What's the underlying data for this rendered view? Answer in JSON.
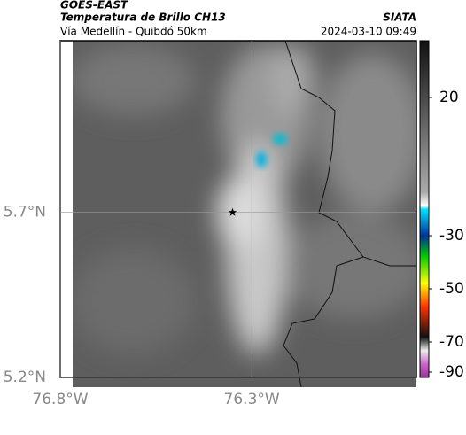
{
  "header": {
    "satellite": "GOES-EAST",
    "product": "Temperatura de Brillo CH13",
    "source": "SIATA",
    "region": "Vía Medellín - Quibdó 50km",
    "timestamp": "2024-03-10 09:49"
  },
  "map": {
    "xlim": [
      -76.8,
      -75.87
    ],
    "ylim": [
      5.2,
      6.22
    ],
    "xticks": [
      {
        "value": -76.8,
        "label": "76.8°W"
      },
      {
        "value": -76.3,
        "label": "76.3°W"
      }
    ],
    "yticks": [
      {
        "value": 5.2,
        "label": "5.2°N"
      },
      {
        "value": 5.7,
        "label": "5.7°N"
      }
    ],
    "grid": true,
    "marker": {
      "lon": -76.35,
      "lat": 5.7
    }
  },
  "colorbar": {
    "ticks": [
      20,
      -30,
      -50,
      -70,
      -90
    ]
  }
}
